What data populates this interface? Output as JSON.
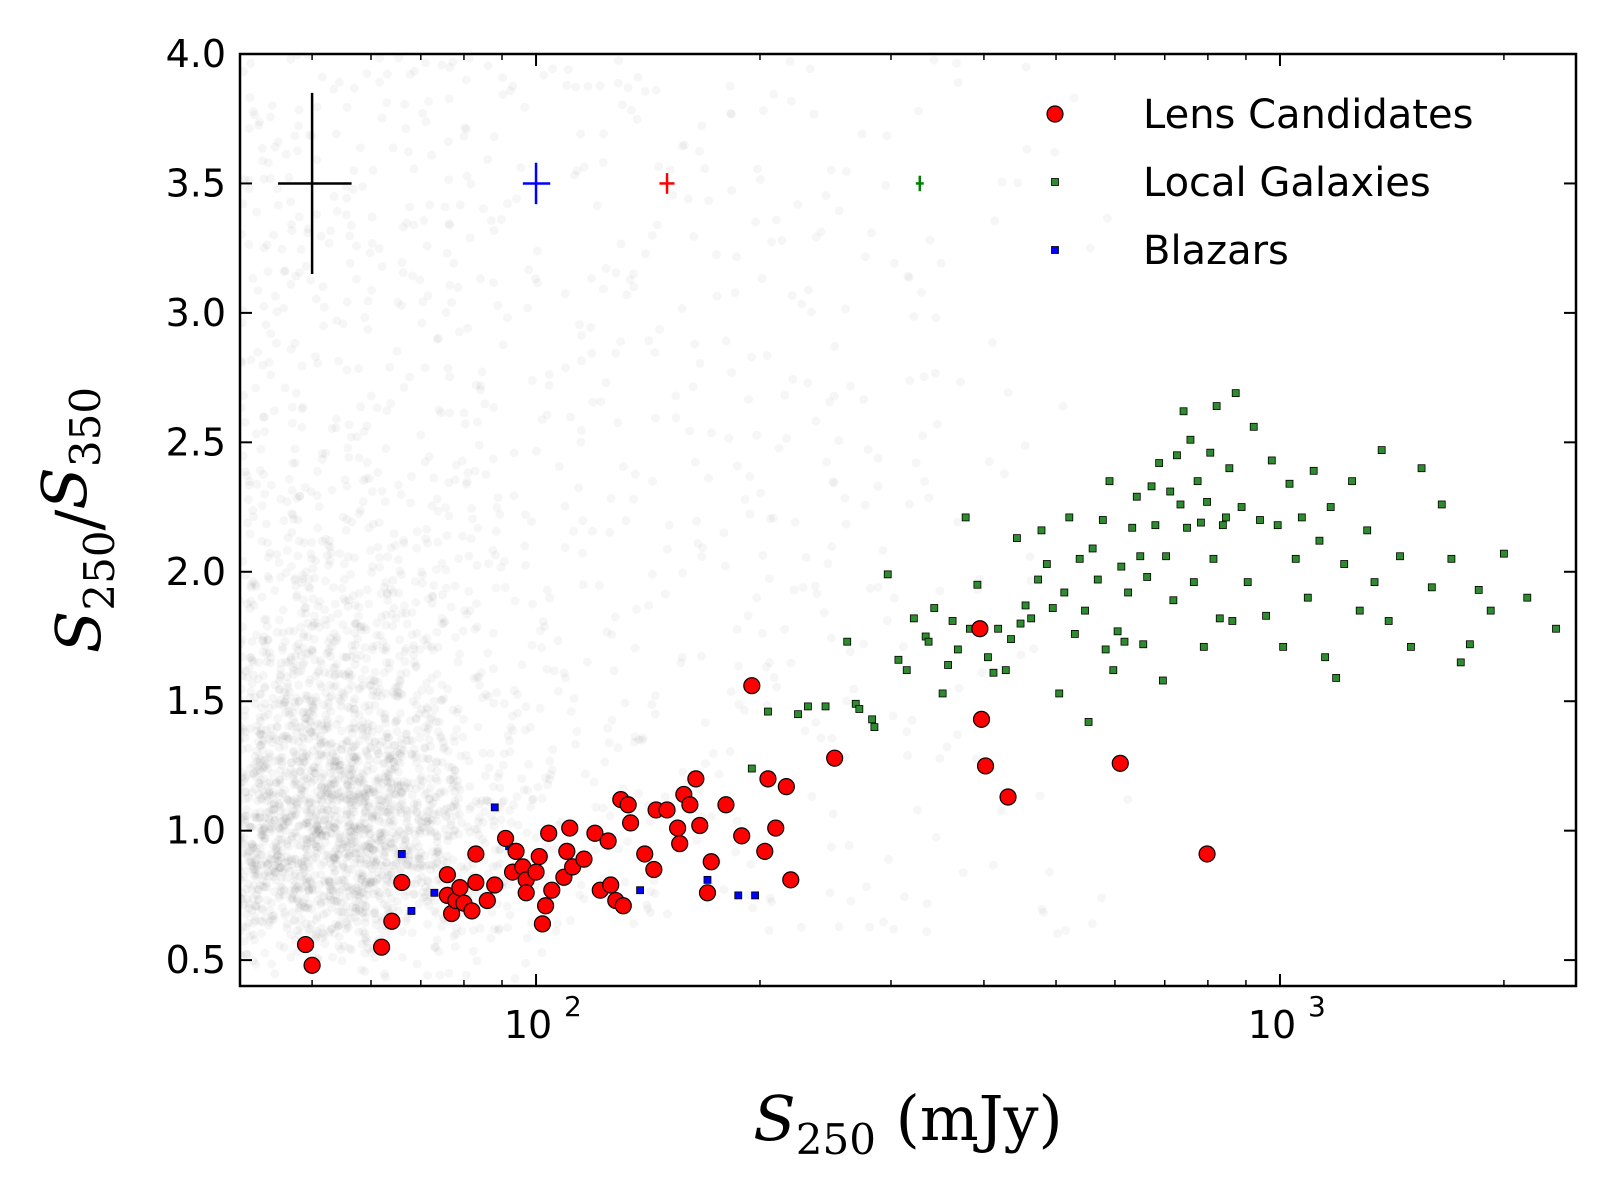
{
  "chart_data": {
    "type": "scatter",
    "xscale": "log",
    "xlim": [
      40,
      2500
    ],
    "ylim": [
      0.4,
      4.0
    ],
    "xlabel": "S_250 (mJy)",
    "ylabel": "S_250 / S_350",
    "x_ticks": [
      {
        "value": 100,
        "label": "10",
        "exp": "2"
      },
      {
        "value": 1000,
        "label": "10",
        "exp": "3"
      }
    ],
    "y_ticks": [
      0.5,
      1.0,
      1.5,
      2.0,
      2.5,
      3.0,
      3.5,
      4.0
    ],
    "y_tick_labels": [
      "0.5",
      "1.0",
      "1.5",
      "2.0",
      "2.5",
      "3.0",
      "3.5",
      "4.0"
    ],
    "legend_position": "top-right",
    "background_population": {
      "description_color": "#000000",
      "density_peak": {
        "x": 52,
        "y": 1.05
      },
      "approx_points": 3500
    },
    "error_bars": [
      {
        "x": 50,
        "y": 3.5,
        "xerr_low": 5,
        "xerr_high": 6.5,
        "yerr": 0.35,
        "color": "#000000"
      },
      {
        "x": 100,
        "y": 3.5,
        "xerr_low": 4,
        "xerr_high": 4.5,
        "yerr": 0.08,
        "color": "#0000ff"
      },
      {
        "x": 150,
        "y": 3.5,
        "xerr_low": 3.5,
        "xerr_high": 3.5,
        "yerr": 0.04,
        "color": "#ff0000"
      },
      {
        "x": 328,
        "y": 3.5,
        "xerr_low": 4,
        "xerr_high": 4,
        "yerr": 0.03,
        "color": "#008000"
      }
    ],
    "series": [
      {
        "name": "Lens Candidates",
        "marker": "circle",
        "color": "#ff0000",
        "points": [
          [
            49,
            0.56
          ],
          [
            50,
            0.48
          ],
          [
            62,
            0.55
          ],
          [
            64,
            0.65
          ],
          [
            66,
            0.8
          ],
          [
            76,
            0.83
          ],
          [
            76,
            0.75
          ],
          [
            77,
            0.68
          ],
          [
            78,
            0.73
          ],
          [
            79,
            0.78
          ],
          [
            80,
            0.72
          ],
          [
            82,
            0.69
          ],
          [
            83,
            0.8
          ],
          [
            83,
            0.91
          ],
          [
            86,
            0.73
          ],
          [
            88,
            0.79
          ],
          [
            91,
            0.97
          ],
          [
            93,
            0.84
          ],
          [
            94,
            0.92
          ],
          [
            96,
            0.86
          ],
          [
            97,
            0.81
          ],
          [
            97,
            0.76
          ],
          [
            100,
            0.84
          ],
          [
            101,
            0.9
          ],
          [
            102,
            0.64
          ],
          [
            103,
            0.71
          ],
          [
            104,
            0.99
          ],
          [
            105,
            0.77
          ],
          [
            109,
            0.82
          ],
          [
            110,
            0.92
          ],
          [
            111,
            1.01
          ],
          [
            112,
            0.86
          ],
          [
            116,
            0.89
          ],
          [
            120,
            0.99
          ],
          [
            122,
            0.77
          ],
          [
            125,
            0.96
          ],
          [
            126,
            0.79
          ],
          [
            128,
            0.73
          ],
          [
            130,
            1.12
          ],
          [
            131,
            0.71
          ],
          [
            133,
            1.1
          ],
          [
            134,
            1.03
          ],
          [
            140,
            0.91
          ],
          [
            144,
            0.85
          ],
          [
            145,
            1.08
          ],
          [
            150,
            1.08
          ],
          [
            155,
            1.01
          ],
          [
            156,
            0.95
          ],
          [
            158,
            1.14
          ],
          [
            161,
            1.1
          ],
          [
            164,
            1.2
          ],
          [
            166,
            1.02
          ],
          [
            170,
            0.76
          ],
          [
            172,
            0.88
          ],
          [
            180,
            1.1
          ],
          [
            189,
            0.98
          ],
          [
            195,
            1.56
          ],
          [
            203,
            0.92
          ],
          [
            205,
            1.2
          ],
          [
            210,
            1.01
          ],
          [
            217,
            1.17
          ],
          [
            220,
            0.81
          ],
          [
            252,
            1.28
          ],
          [
            395,
            1.78
          ],
          [
            397,
            1.43
          ],
          [
            402,
            1.25
          ],
          [
            431,
            1.13
          ],
          [
            610,
            1.26
          ],
          [
            798,
            0.91
          ]
        ]
      },
      {
        "name": "Local Galaxies",
        "marker": "square",
        "color": "#2e8b2e",
        "points": [
          [
            195,
            1.24
          ],
          [
            205,
            1.46
          ],
          [
            225,
            1.45
          ],
          [
            232,
            1.48
          ],
          [
            245,
            1.48
          ],
          [
            262,
            1.73
          ],
          [
            269,
            1.49
          ],
          [
            272,
            1.47
          ],
          [
            283,
            1.43
          ],
          [
            285,
            1.4
          ],
          [
            297,
            1.99
          ],
          [
            307,
            1.66
          ],
          [
            315,
            1.62
          ],
          [
            322,
            1.82
          ],
          [
            334,
            1.75
          ],
          [
            337,
            1.73
          ],
          [
            343,
            1.86
          ],
          [
            352,
            1.53
          ],
          [
            358,
            1.64
          ],
          [
            363,
            1.81
          ],
          [
            369,
            1.7
          ],
          [
            378,
            2.21
          ],
          [
            383,
            1.78
          ],
          [
            392,
            1.95
          ],
          [
            405,
            1.67
          ],
          [
            412,
            1.61
          ],
          [
            418,
            1.78
          ],
          [
            428,
            1.62
          ],
          [
            435,
            1.74
          ],
          [
            443,
            2.13
          ],
          [
            448,
            1.8
          ],
          [
            455,
            1.87
          ],
          [
            463,
            1.82
          ],
          [
            473,
            1.97
          ],
          [
            478,
            2.16
          ],
          [
            486,
            2.03
          ],
          [
            495,
            1.86
          ],
          [
            505,
            1.53
          ],
          [
            513,
            1.92
          ],
          [
            521,
            2.21
          ],
          [
            530,
            1.76
          ],
          [
            538,
            2.05
          ],
          [
            547,
            1.85
          ],
          [
            553,
            1.42
          ],
          [
            560,
            2.09
          ],
          [
            569,
            1.97
          ],
          [
            578,
            2.2
          ],
          [
            583,
            1.7
          ],
          [
            590,
            2.35
          ],
          [
            597,
            1.62
          ],
          [
            605,
            1.77
          ],
          [
            612,
            2.02
          ],
          [
            618,
            1.73
          ],
          [
            625,
            1.92
          ],
          [
            633,
            2.17
          ],
          [
            642,
            2.29
          ],
          [
            649,
            2.06
          ],
          [
            655,
            1.72
          ],
          [
            663,
            1.98
          ],
          [
            672,
            2.33
          ],
          [
            680,
            2.18
          ],
          [
            688,
            2.42
          ],
          [
            696,
            1.58
          ],
          [
            703,
            2.06
          ],
          [
            712,
            2.31
          ],
          [
            719,
            1.89
          ],
          [
            727,
            2.45
          ],
          [
            735,
            2.26
          ],
          [
            742,
            2.62
          ],
          [
            750,
            2.17
          ],
          [
            758,
            2.51
          ],
          [
            766,
            1.96
          ],
          [
            775,
            2.35
          ],
          [
            783,
            2.19
          ],
          [
            790,
            1.71
          ],
          [
            798,
            2.27
          ],
          [
            806,
            2.46
          ],
          [
            814,
            2.05
          ],
          [
            822,
            2.64
          ],
          [
            830,
            1.82
          ],
          [
            838,
            2.18
          ],
          [
            846,
            2.21
          ],
          [
            855,
            2.4
          ],
          [
            863,
            1.81
          ],
          [
            872,
            2.69
          ],
          [
            888,
            2.25
          ],
          [
            905,
            1.96
          ],
          [
            922,
            2.56
          ],
          [
            940,
            2.2
          ],
          [
            958,
            1.83
          ],
          [
            975,
            2.43
          ],
          [
            993,
            2.18
          ],
          [
            1010,
            1.71
          ],
          [
            1030,
            2.34
          ],
          [
            1050,
            2.05
          ],
          [
            1070,
            2.21
          ],
          [
            1090,
            1.9
          ],
          [
            1110,
            2.39
          ],
          [
            1130,
            2.12
          ],
          [
            1150,
            1.67
          ],
          [
            1170,
            2.25
          ],
          [
            1190,
            1.59
          ],
          [
            1220,
            2.03
          ],
          [
            1250,
            2.35
          ],
          [
            1280,
            1.85
          ],
          [
            1310,
            2.16
          ],
          [
            1340,
            1.96
          ],
          [
            1370,
            2.47
          ],
          [
            1400,
            1.81
          ],
          [
            1450,
            2.06
          ],
          [
            1500,
            1.71
          ],
          [
            1550,
            2.4
          ],
          [
            1600,
            1.94
          ],
          [
            1650,
            2.26
          ],
          [
            1700,
            2.05
          ],
          [
            1750,
            1.65
          ],
          [
            1800,
            1.72
          ],
          [
            1850,
            1.93
          ],
          [
            1920,
            1.85
          ],
          [
            2000,
            2.07
          ],
          [
            2150,
            1.9
          ],
          [
            2350,
            1.78
          ]
        ]
      },
      {
        "name": "Blazars",
        "marker": "square",
        "color": "#0000ff",
        "points": [
          [
            66,
            0.91
          ],
          [
            68,
            0.69
          ],
          [
            73,
            0.76
          ],
          [
            88,
            1.09
          ],
          [
            92,
            0.94
          ],
          [
            138,
            0.77
          ],
          [
            170,
            0.81
          ],
          [
            187,
            0.75
          ],
          [
            197,
            0.75
          ]
        ]
      }
    ]
  }
}
